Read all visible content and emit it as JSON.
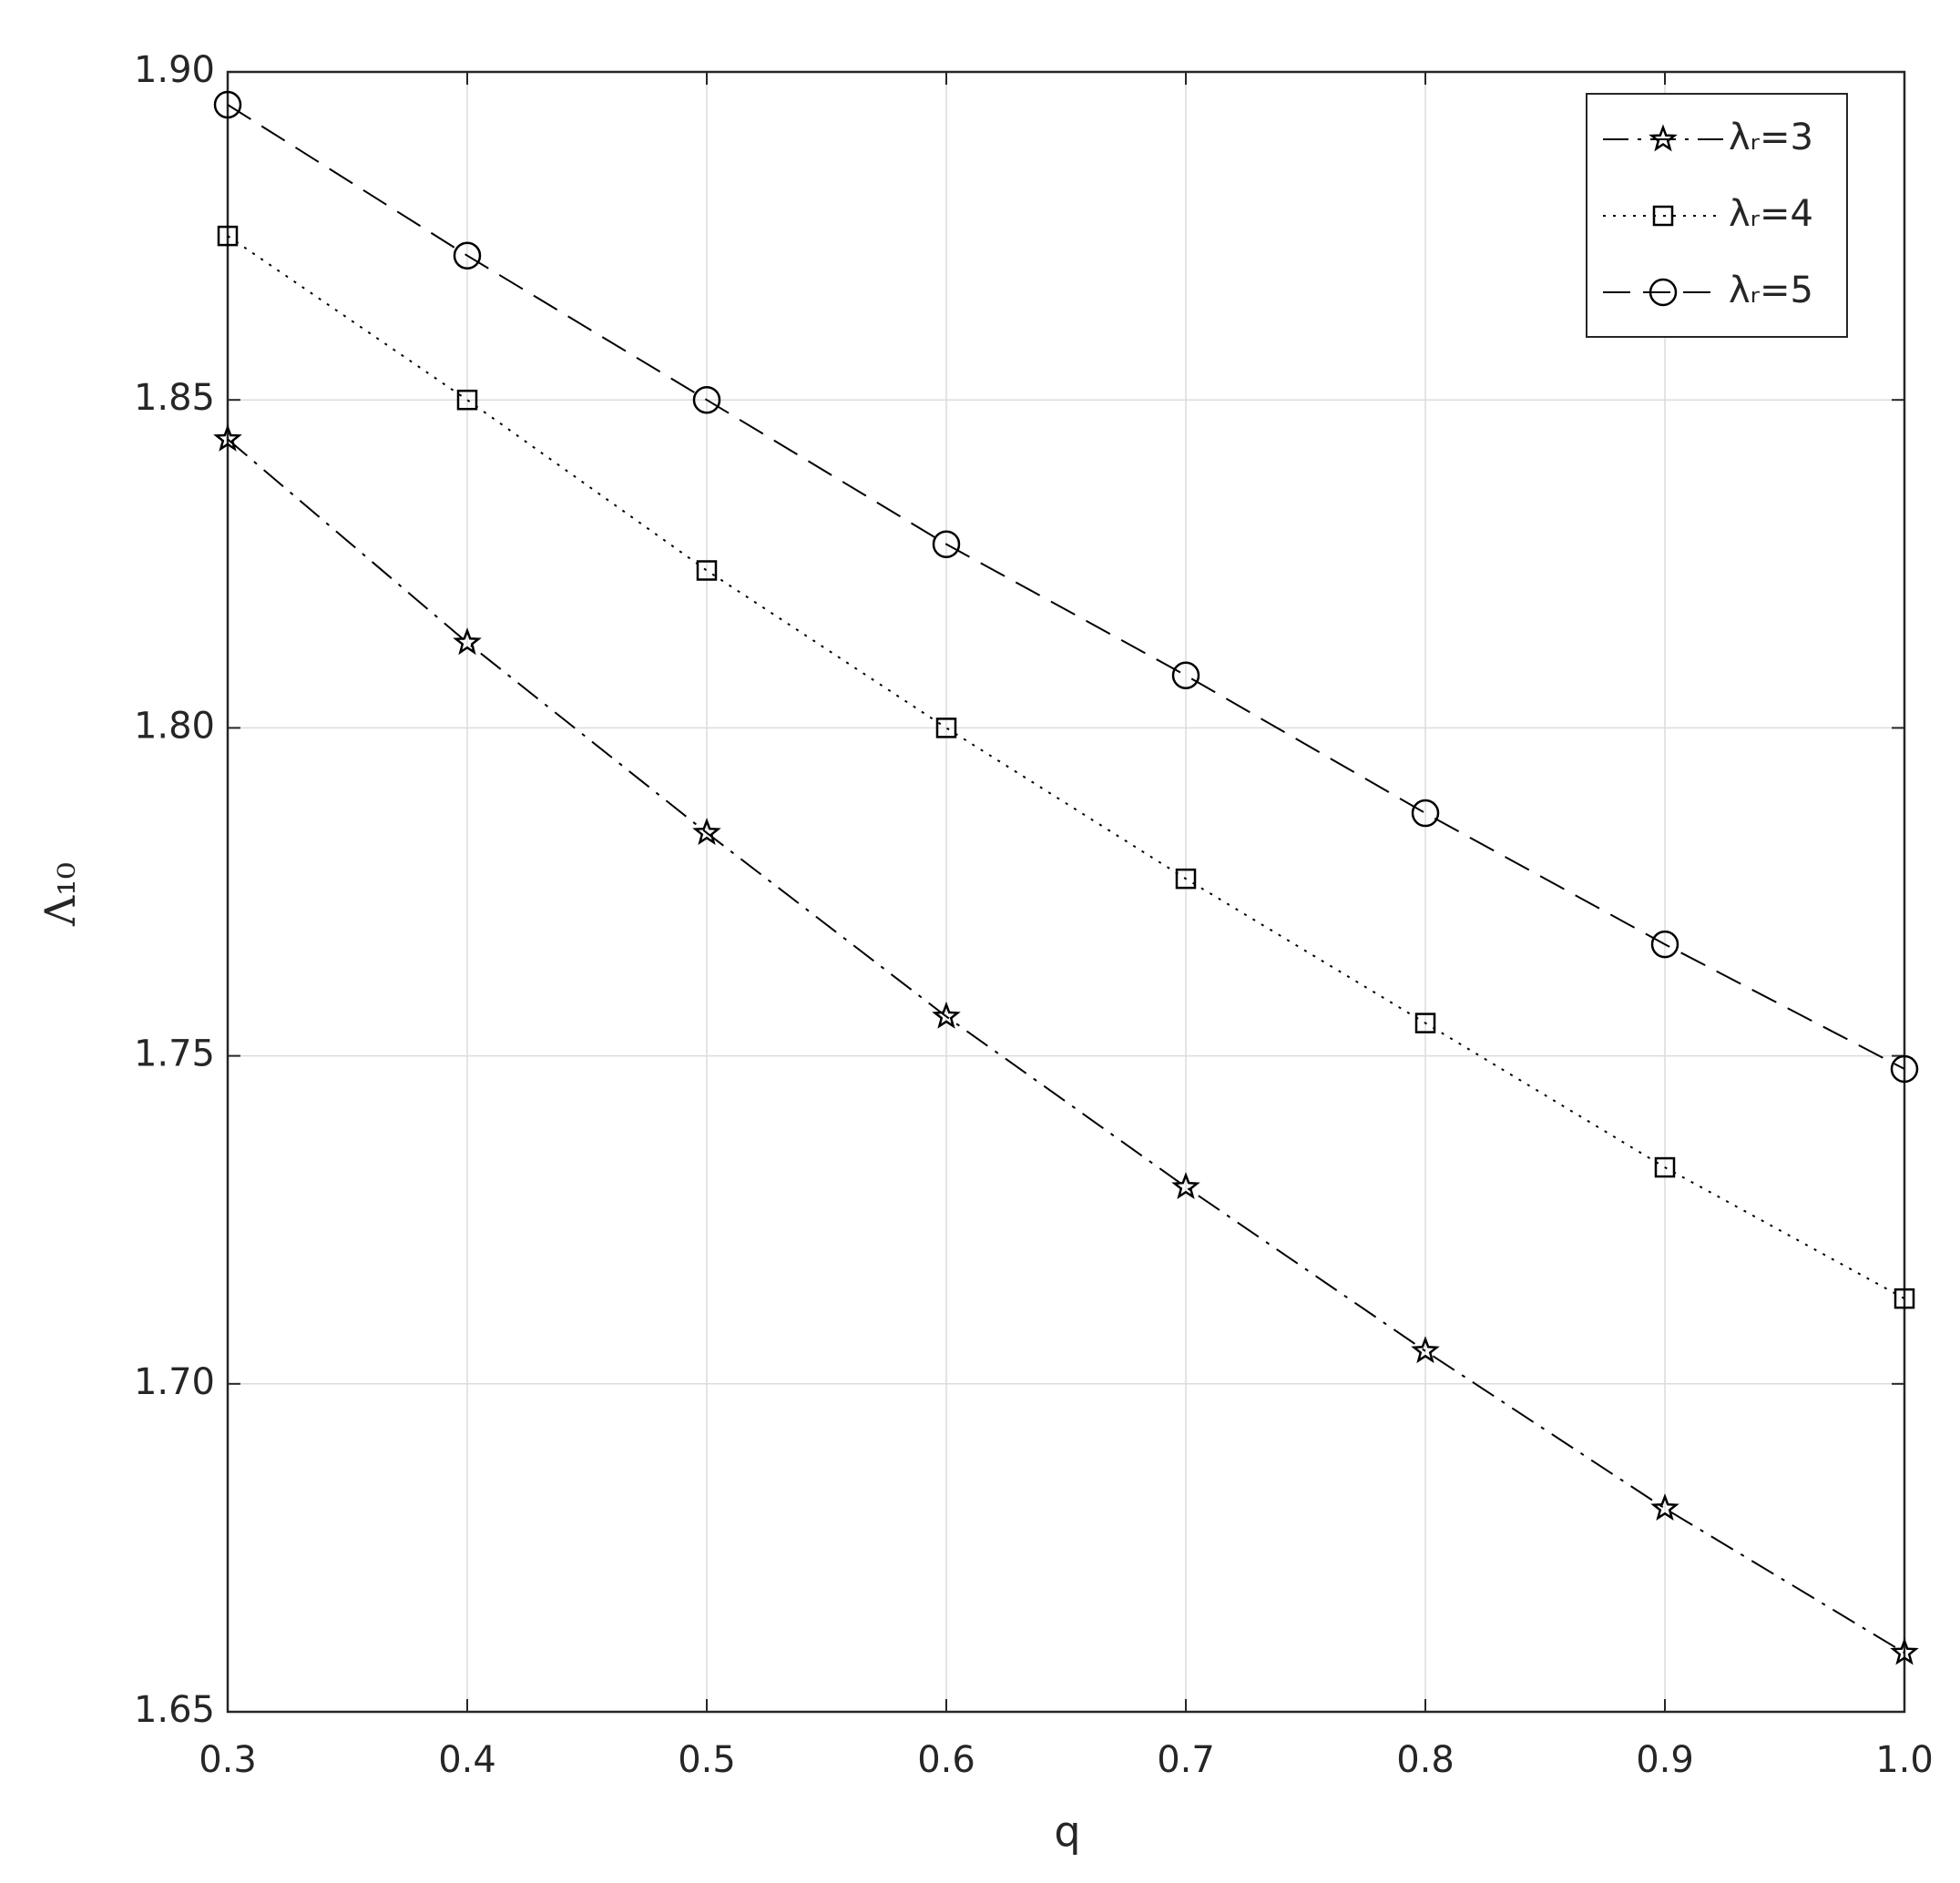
{
  "chart_data": {
    "type": "line",
    "x_label": "q",
    "y_label": "Λ₁₀",
    "x": [
      0.3,
      0.4,
      0.5,
      0.6,
      0.7,
      0.8,
      0.9,
      1.0
    ],
    "series": [
      {
        "name": "λᵣ=3",
        "color": "#000000",
        "marker": "star",
        "dash": "dashdot",
        "values": [
          1.844,
          1.813,
          1.784,
          1.756,
          1.73,
          1.705,
          1.681,
          1.659
        ]
      },
      {
        "name": "λᵣ=4",
        "color": "#000000",
        "marker": "square",
        "dash": "dotted",
        "values": [
          1.875,
          1.85,
          1.824,
          1.8,
          1.777,
          1.755,
          1.733,
          1.713
        ]
      },
      {
        "name": "λᵣ=5",
        "color": "#000000",
        "marker": "circle",
        "dash": "dashed",
        "values": [
          1.895,
          1.872,
          1.85,
          1.828,
          1.808,
          1.787,
          1.767,
          1.748
        ]
      }
    ],
    "xlim": [
      0.3,
      1.0
    ],
    "xticks": [
      0.3,
      0.4,
      0.5,
      0.6,
      0.7,
      0.8,
      0.9,
      {
        "value": 1.0,
        "label": "1.0"
      }
    ],
    "ylim": [
      1.65,
      1.9
    ],
    "yticks": [
      1.65,
      {
        "value": 1.7,
        "label": "1.70"
      },
      1.75,
      {
        "value": 1.8,
        "label": "1.80"
      },
      1.85,
      {
        "value": 1.9,
        "label": "1.90"
      }
    ],
    "grid": true,
    "legend": "upper right"
  }
}
